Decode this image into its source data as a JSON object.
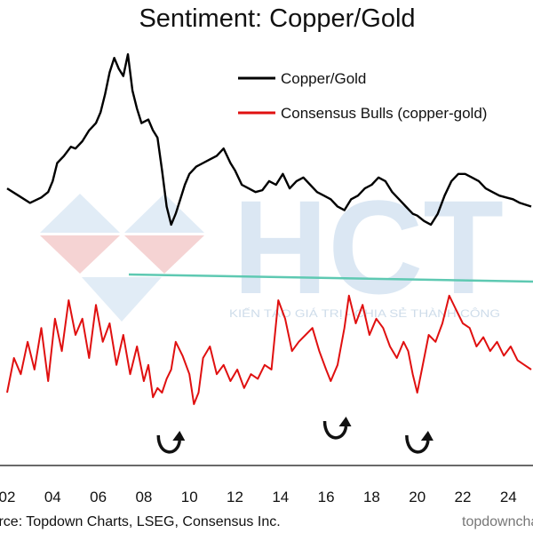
{
  "chart_data": {
    "type": "line",
    "title": "Sentiment: Copper/Gold",
    "x_tick_labels": [
      "02",
      "04",
      "06",
      "08",
      "10",
      "12",
      "14",
      "16",
      "18",
      "20",
      "22",
      "24"
    ],
    "xlim": [
      2002,
      2025
    ],
    "series": [
      {
        "name": "Copper/Gold",
        "color": "#000000",
        "x": [
          2002.0,
          2002.5,
          2003.0,
          2003.5,
          2003.8,
          2004.0,
          2004.2,
          2004.5,
          2004.8,
          2005.0,
          2005.3,
          2005.6,
          2005.9,
          2006.1,
          2006.3,
          2006.5,
          2006.7,
          2006.9,
          2007.1,
          2007.3,
          2007.5,
          2007.7,
          2007.9,
          2008.2,
          2008.4,
          2008.6,
          2008.8,
          2009.0,
          2009.2,
          2009.4,
          2009.6,
          2009.8,
          2010.0,
          2010.3,
          2010.6,
          2010.9,
          2011.2,
          2011.5,
          2011.8,
          2012.0,
          2012.3,
          2012.6,
          2012.9,
          2013.2,
          2013.5,
          2013.8,
          2014.1,
          2014.4,
          2014.7,
          2015.0,
          2015.3,
          2015.6,
          2015.9,
          2016.2,
          2016.5,
          2016.8,
          2017.1,
          2017.4,
          2017.7,
          2018.0,
          2018.3,
          2018.6,
          2018.9,
          2019.2,
          2019.5,
          2019.8,
          2020.0,
          2020.3,
          2020.6,
          2020.9,
          2021.2,
          2021.5,
          2021.8,
          2022.1,
          2022.4,
          2022.7,
          2023.0,
          2023.3,
          2023.6,
          2023.9,
          2024.2,
          2024.5,
          2025.0
        ],
        "values": [
          48,
          44,
          40,
          43,
          46,
          52,
          62,
          66,
          71,
          70,
          74,
          80,
          84,
          90,
          100,
          112,
          120,
          114,
          110,
          122,
          102,
          92,
          84,
          86,
          80,
          76,
          58,
          38,
          28,
          34,
          42,
          50,
          56,
          60,
          62,
          64,
          66,
          70,
          62,
          58,
          50,
          48,
          46,
          47,
          52,
          50,
          56,
          48,
          52,
          54,
          50,
          46,
          44,
          42,
          38,
          36,
          42,
          44,
          48,
          50,
          54,
          52,
          46,
          42,
          38,
          34,
          33,
          30,
          28,
          34,
          44,
          52,
          56,
          56,
          54,
          52,
          48,
          46,
          44,
          43,
          42,
          40,
          38
        ]
      },
      {
        "name": "Consensus Bulls (copper-gold)",
        "color": "#e01010",
        "x": [
          2002.0,
          2002.3,
          2002.6,
          2002.9,
          2003.2,
          2003.5,
          2003.8,
          2004.1,
          2004.4,
          2004.7,
          2005.0,
          2005.3,
          2005.6,
          2005.9,
          2006.2,
          2006.5,
          2006.8,
          2007.1,
          2007.4,
          2007.7,
          2008.0,
          2008.2,
          2008.4,
          2008.6,
          2008.8,
          2009.0,
          2009.2,
          2009.4,
          2009.7,
          2010.0,
          2010.2,
          2010.4,
          2010.6,
          2010.9,
          2011.2,
          2011.5,
          2011.8,
          2012.1,
          2012.4,
          2012.7,
          2013.0,
          2013.3,
          2013.6,
          2013.9,
          2014.2,
          2014.5,
          2014.8,
          2015.1,
          2015.4,
          2015.7,
          2016.0,
          2016.2,
          2016.5,
          2016.8,
          2017.0,
          2017.3,
          2017.6,
          2017.9,
          2018.2,
          2018.5,
          2018.8,
          2019.1,
          2019.4,
          2019.6,
          2019.8,
          2020.0,
          2020.2,
          2020.5,
          2020.8,
          2021.1,
          2021.4,
          2021.7,
          2022.0,
          2022.3,
          2022.6,
          2022.9,
          2023.2,
          2023.5,
          2023.8,
          2024.1,
          2024.4,
          2024.7,
          2025.0
        ],
        "values": [
          30,
          45,
          38,
          52,
          40,
          58,
          35,
          62,
          48,
          70,
          55,
          62,
          45,
          68,
          52,
          60,
          42,
          55,
          38,
          50,
          35,
          42,
          28,
          32,
          30,
          36,
          40,
          52,
          46,
          38,
          25,
          30,
          45,
          50,
          38,
          42,
          35,
          40,
          32,
          38,
          36,
          42,
          40,
          70,
          62,
          48,
          52,
          55,
          58,
          48,
          40,
          35,
          42,
          58,
          72,
          60,
          68,
          55,
          62,
          58,
          50,
          45,
          52,
          48,
          38,
          30,
          40,
          55,
          52,
          60,
          72,
          66,
          60,
          58,
          50,
          54,
          48,
          52,
          46,
          50,
          44,
          42,
          40
        ]
      }
    ],
    "annotations": {
      "trendline_color": "#5ec9b2",
      "arrow_dates": [
        2009.3,
        2016.6,
        2020.2
      ]
    },
    "source": "Source: Topdown Charts, LSEG, Consensus Inc.",
    "credit": "topdowncharts.com",
    "grid": false,
    "legend": "top-right"
  },
  "watermark": {
    "text": "HCT",
    "slogan": "KIẾN TẠO GIÁ TRỊ - CHIA SẺ THÀNH CÔNG"
  }
}
